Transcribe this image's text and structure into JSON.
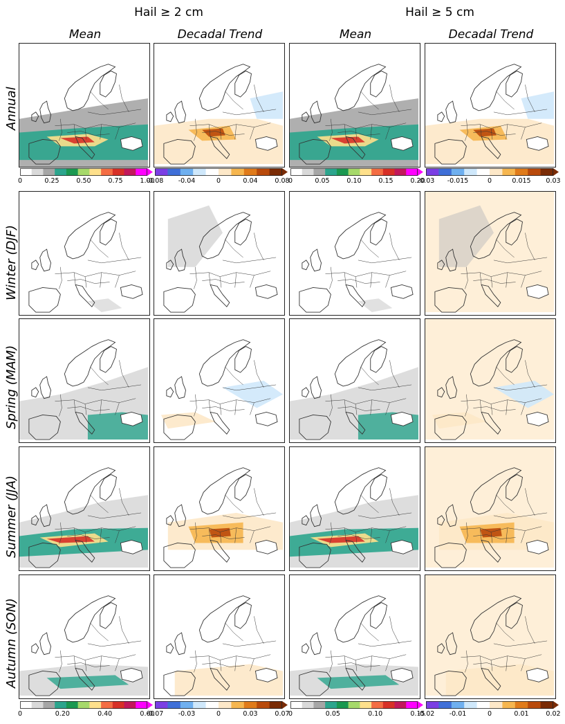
{
  "figure": {
    "group_titles": [
      "Hail ≥ 2 cm",
      "Hail ≥ 5 cm"
    ],
    "column_titles": [
      "Mean",
      "Decadal Trend",
      "Mean",
      "Decadal Trend"
    ],
    "row_titles": [
      "Annual",
      "Winter (DJF)",
      "Spring (MAM)",
      "Summer (JJA)",
      "Autumn (SON)"
    ],
    "colorbars_annual": [
      {
        "ticks": [
          "0",
          "0.25",
          "0.50",
          "0.75",
          "1.00"
        ],
        "palette": "mean"
      },
      {
        "ticks": [
          "-0.08",
          "-0.04",
          "0",
          "0.04",
          "0.08"
        ],
        "palette": "trend"
      },
      {
        "ticks": [
          "0",
          "0.05",
          "0.10",
          "0.15",
          "0.20"
        ],
        "palette": "mean"
      },
      {
        "ticks": [
          "-0.03",
          "-0.015",
          "0",
          "0.015",
          "0.03"
        ],
        "palette": "trend"
      }
    ],
    "colorbars_seasonal": [
      {
        "ticks": [
          "0",
          "0.20",
          "0.40",
          "0.60"
        ],
        "palette": "mean"
      },
      {
        "ticks": [
          "-0.07",
          "-0.03",
          "0",
          "0.03",
          "0.07"
        ],
        "palette": "trend"
      },
      {
        "ticks": [
          "0",
          "0.05",
          "0.10",
          "0.15"
        ],
        "palette": "mean"
      },
      {
        "ticks": [
          "-0.02",
          "-0.01",
          "0",
          "0.01",
          "0.02"
        ],
        "palette": "trend"
      }
    ],
    "colors": {
      "mean_palette": [
        "#ffffff",
        "#d9d9d9",
        "#a6a6a6",
        "#2ca58d",
        "#1a9850",
        "#a6d96a",
        "#fee08b",
        "#f46d43",
        "#d73027",
        "#c2185b",
        "#ff00ff"
      ],
      "trend_palette": [
        "#7b3fe4",
        "#3f6fd8",
        "#6fb0f0",
        "#cfe8fb",
        "#ffffff",
        "#fde8c8",
        "#f6b64f",
        "#e07b1a",
        "#b94a0b",
        "#7a2b05"
      ],
      "panel_border": "#222222",
      "map_lines": "#333333"
    }
  }
}
